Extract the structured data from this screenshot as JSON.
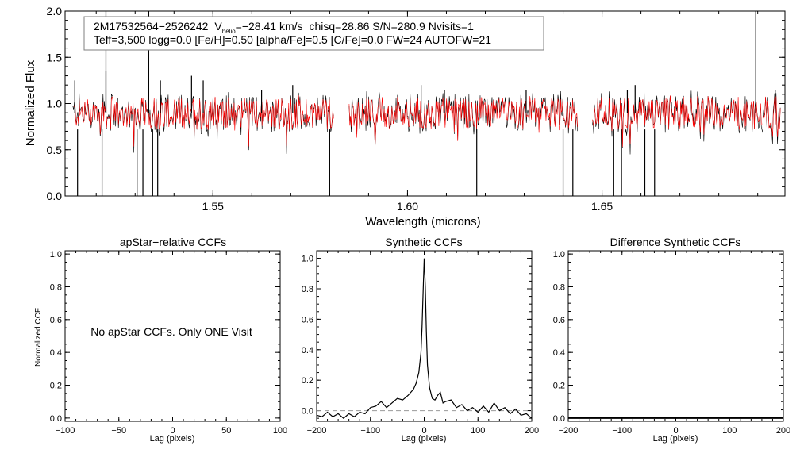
{
  "chart_data": [
    {
      "type": "line",
      "title": "",
      "xlabel": "Wavelength (microns)",
      "ylabel": "Normalized Flux",
      "xlim": [
        1.512,
        1.697
      ],
      "ylim": [
        0.0,
        2.0
      ],
      "x_ticks": [
        1.55,
        1.6,
        1.65
      ],
      "x_tick_labels": [
        "1.55",
        "1.60",
        "1.65"
      ],
      "y_ticks": [
        0.0,
        0.5,
        1.0,
        1.5,
        2.0
      ],
      "y_tick_labels": [
        "0.0",
        "0.5",
        "1.0",
        "1.5",
        "2.0"
      ],
      "chip_ranges": [
        [
          1.514,
          1.581
        ],
        [
          1.585,
          1.6437
        ],
        [
          1.6475,
          1.6958
        ]
      ],
      "continuum_level": 0.9,
      "series": [
        {
          "name": "observed spectrum",
          "color": "#000000"
        },
        {
          "name": "model spectrum",
          "color": "#ff0000"
        }
      ],
      "spike_lines": [
        {
          "x": 1.5225,
          "y": 2.0
        },
        {
          "x": 1.5335,
          "y": 2.0
        },
        {
          "x": 1.5225,
          "y": 1.35
        },
        {
          "x": 1.5145,
          "y": 1.25
        },
        {
          "x": 1.5365,
          "y": 1.25
        },
        {
          "x": 1.5445,
          "y": 1.3
        },
        {
          "x": 1.5475,
          "y": 1.25
        },
        {
          "x": 1.5625,
          "y": 1.15
        },
        {
          "x": 1.5705,
          "y": 1.2
        },
        {
          "x": 1.6035,
          "y": 1.2
        },
        {
          "x": 1.6095,
          "y": 1.15
        },
        {
          "x": 1.6305,
          "y": 1.15
        },
        {
          "x": 1.6585,
          "y": 1.2
        },
        {
          "x": 1.6565,
          "y": 1.15
        },
        {
          "x": 1.6895,
          "y": 2.0
        },
        {
          "x": 1.6945,
          "y": 1.15
        }
      ],
      "dip_lines": [
        {
          "x": 1.5152,
          "y": 0.0
        },
        {
          "x": 1.5215,
          "y": 0.0
        },
        {
          "x": 1.5305,
          "y": 0.0
        },
        {
          "x": 1.5358,
          "y": 0.0
        },
        {
          "x": 1.58,
          "y": 0.0
        },
        {
          "x": 1.6178,
          "y": 0.0
        },
        {
          "x": 1.64,
          "y": 0.0
        },
        {
          "x": 1.6425,
          "y": 0.0
        },
        {
          "x": 1.661,
          "y": 0.0
        },
        {
          "x": 1.6635,
          "y": 0.0
        },
        {
          "x": 1.653,
          "y": 0.0
        },
        {
          "x": 1.655,
          "y": 0.0
        },
        {
          "x": 1.532,
          "y": 0.0
        },
        {
          "x": 1.5345,
          "y": 0.0
        }
      ],
      "annotation": {
        "star_id": "2M17532564−2526242",
        "v_label": "V",
        "v_sub": "helio",
        "v_value": "=−28.41 km/s",
        "stats": "chisq=28.86  S/N=280.9  Nvisits=1",
        "params": "Teff=3,500 logg=0.0 [Fe/H]=0.50 [alpha/Fe]=0.5 [C/Fe]=0.0 FW=24 AUTOFW=21"
      }
    },
    {
      "type": "line",
      "title": "apStar−relative CCFs",
      "xlabel": "Lag (pixels)",
      "ylabel": "Normalized CCF",
      "xlim": [
        -100,
        100
      ],
      "ylim": [
        -0.02,
        1.02
      ],
      "x_ticks": [
        -100,
        -50,
        0,
        50,
        100
      ],
      "x_tick_labels": [
        "−100",
        "−50",
        "0",
        "50",
        "100"
      ],
      "y_ticks": [
        0.0,
        0.2,
        0.4,
        0.6,
        0.8,
        1.0
      ],
      "y_tick_labels": [
        "0.0",
        "0.2",
        "0.4",
        "0.6",
        "0.8",
        "1.0"
      ],
      "message": "No apStar CCFs.  Only ONE Visit",
      "series": []
    },
    {
      "type": "line",
      "title": "Synthetic CCFs",
      "xlabel": "Lag (pixels)",
      "ylabel": "",
      "xlim": [
        -200,
        200
      ],
      "ylim": [
        -0.07,
        1.05
      ],
      "x_ticks": [
        -200,
        -100,
        0,
        100,
        200
      ],
      "x_tick_labels": [
        "−200",
        "−100",
        "0",
        "100",
        "200"
      ],
      "y_ticks": [
        0.0,
        0.2,
        0.4,
        0.6,
        0.8,
        1.0
      ],
      "y_tick_labels": [
        "0.0",
        "0.2",
        "0.4",
        "0.6",
        "0.8",
        "1.0"
      ],
      "baseline": 0.0,
      "series": [
        {
          "name": "Synthetic CCF",
          "color": "#000000",
          "x": [
            -200,
            -190,
            -180,
            -170,
            -160,
            -150,
            -140,
            -130,
            -120,
            -110,
            -100,
            -90,
            -80,
            -70,
            -60,
            -50,
            -40,
            -30,
            -20,
            -15,
            -10,
            -6,
            -4,
            -2,
            0,
            2,
            4,
            6,
            10,
            15,
            20,
            25,
            30,
            35,
            40,
            50,
            60,
            70,
            80,
            90,
            100,
            110,
            120,
            130,
            140,
            150,
            160,
            170,
            180,
            190,
            200
          ],
          "values": [
            -0.03,
            -0.04,
            -0.01,
            -0.04,
            -0.02,
            -0.05,
            -0.02,
            -0.04,
            -0.01,
            -0.02,
            0.02,
            0.03,
            0.06,
            0.02,
            0.05,
            0.08,
            0.07,
            0.1,
            0.14,
            0.18,
            0.25,
            0.38,
            0.55,
            0.78,
            1.0,
            0.82,
            0.52,
            0.3,
            0.15,
            0.08,
            0.07,
            0.1,
            0.12,
            0.05,
            0.06,
            0.07,
            0.02,
            0.04,
            0.0,
            0.02,
            -0.01,
            0.03,
            -0.01,
            0.05,
            0.0,
            0.02,
            -0.02,
            0.01,
            -0.03,
            -0.02,
            -0.05
          ]
        }
      ]
    },
    {
      "type": "line",
      "title": "Difference Synthetic CCFs",
      "xlabel": "Lag (pixels)",
      "ylabel": "",
      "xlim": [
        -200,
        200
      ],
      "ylim": [
        -0.02,
        1.02
      ],
      "x_ticks": [
        -200,
        -100,
        0,
        100,
        200
      ],
      "x_tick_labels": [
        "−200",
        "−100",
        "0",
        "100",
        "200"
      ],
      "y_ticks": [
        0.0,
        0.2,
        0.4,
        0.6,
        0.8,
        1.0
      ],
      "y_tick_labels": [
        "0.0",
        "0.2",
        "0.4",
        "0.6",
        "0.8",
        "1.0"
      ],
      "series": [
        {
          "name": "Difference CCF",
          "color": "#000000",
          "x": [
            -200,
            200
          ],
          "values": [
            0.0,
            0.0
          ]
        }
      ]
    }
  ]
}
